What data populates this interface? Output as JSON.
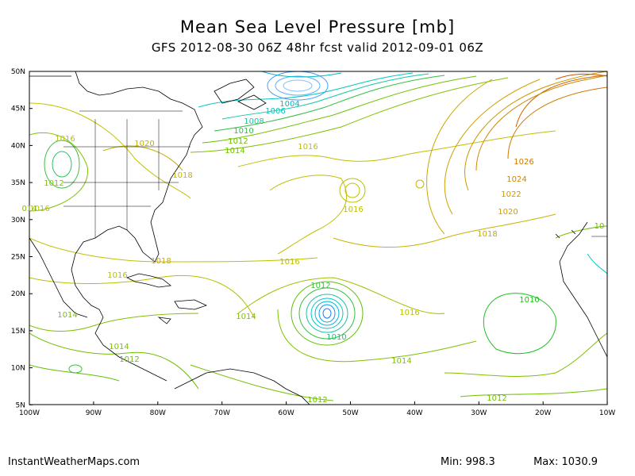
{
  "title": "Mean Sea Level Pressure [mb]",
  "subtitle": "GFS 2012-08-30 06Z 48hr fcst valid 2012-09-01 06Z",
  "footer": {
    "site": "InstantWeatherMaps.com",
    "min_label": "Min:",
    "min_value": "998.3",
    "max_label": "Max:",
    "max_value": "1030.9"
  },
  "axes": {
    "lat_labels": [
      "50N",
      "45N",
      "40N",
      "35N",
      "30N",
      "25N",
      "20N",
      "15N",
      "10N",
      "5N"
    ],
    "lon_labels": [
      "100W",
      "90W",
      "80W",
      "70W",
      "60W",
      "50W",
      "40W",
      "30W",
      "20W",
      "10W"
    ]
  },
  "contour_labels": [
    {
      "text": "1004",
      "color": "#00b8c8"
    },
    {
      "text": "1006",
      "color": "#00c8c0"
    },
    {
      "text": "1008",
      "color": "#10c8a0"
    },
    {
      "text": "1010",
      "color": "#30c040"
    },
    {
      "text": "1012",
      "color": "#70c000"
    },
    {
      "text": "1014",
      "color": "#70c000"
    },
    {
      "text": "1016",
      "color": "#c0c000"
    },
    {
      "text": "1016",
      "color": "#b8c000"
    },
    {
      "text": "1020",
      "color": "#c0b000"
    },
    {
      "text": "1018",
      "color": "#c8b400"
    },
    {
      "text": "1016",
      "color": "#c0c000"
    },
    {
      "text": "1012",
      "color": "#80c000"
    },
    {
      "text": "014",
      "color": "#80c000"
    },
    {
      "text": "1016",
      "color": "#c0c000"
    },
    {
      "text": "1018",
      "color": "#c8a800"
    },
    {
      "text": "1020",
      "color": "#d0a000"
    },
    {
      "text": "1022",
      "color": "#d09800"
    },
    {
      "text": "1024",
      "color": "#d08800"
    },
    {
      "text": "1026",
      "color": "#d07800"
    },
    {
      "text": "1016",
      "color": "#b8c000"
    },
    {
      "text": "1018",
      "color": "#c8b000"
    },
    {
      "text": "1016",
      "color": "#b8c000"
    },
    {
      "text": "1014",
      "color": "#80c000"
    },
    {
      "text": "1012",
      "color": "#40c040"
    },
    {
      "text": "1010",
      "color": "#20c080"
    },
    {
      "text": "1016",
      "color": "#b8c000"
    },
    {
      "text": "1014",
      "color": "#80c000"
    },
    {
      "text": "1014",
      "color": "#80c000"
    },
    {
      "text": "1014",
      "color": "#80c000"
    },
    {
      "text": "1012",
      "color": "#70c000"
    },
    {
      "text": "1012",
      "color": "#70c000"
    },
    {
      "text": "1012",
      "color": "#70c000"
    },
    {
      "text": "1010",
      "color": "#20c020"
    },
    {
      "text": "10",
      "color": "#70c000"
    }
  ]
}
